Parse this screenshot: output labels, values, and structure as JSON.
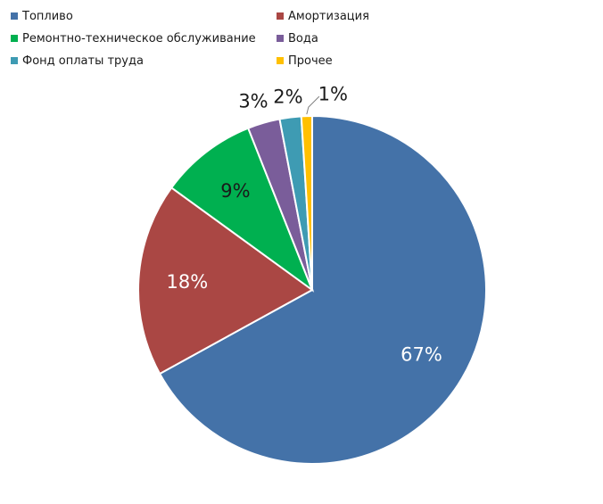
{
  "chart_data": {
    "type": "pie",
    "legend_position": "top",
    "start_angle_deg": 0,
    "slices": [
      {
        "label": "Топливо",
        "value": 67,
        "display": "67%",
        "color": "#4472a8"
      },
      {
        "label": "Амортизация",
        "value": 18,
        "display": "18%",
        "color": "#aa4744"
      },
      {
        "label": "Ремонтно-техническое обслуживание",
        "value": 9,
        "display": "9%",
        "color": "#00b050"
      },
      {
        "label": "Вода",
        "value": 3,
        "display": "3%",
        "color": "#7a5d9a"
      },
      {
        "label": "Фонд оплаты труда",
        "value": 2,
        "display": "2%",
        "color": "#3e9bb3"
      },
      {
        "label": "Прочее",
        "value": 1,
        "display": "1%",
        "color": "#ffc000"
      }
    ]
  }
}
